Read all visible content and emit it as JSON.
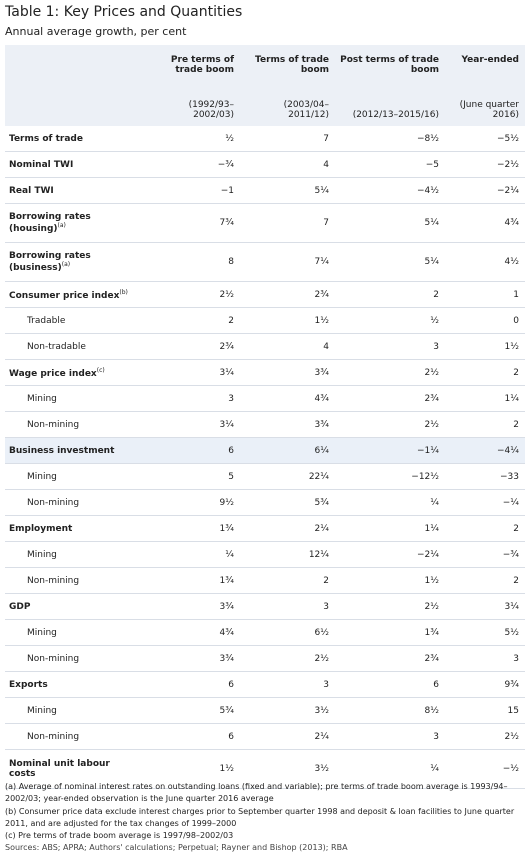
{
  "title": "Table 1: Key Prices and Quantities",
  "subtitle": "Annual average growth, per cent",
  "columns": [
    {
      "title": "Pre terms of trade boom",
      "period": "(1992/93–2002/03)"
    },
    {
      "title": "Terms of trade boom",
      "period": "(2003/04–2011/12)"
    },
    {
      "title": "Post terms of trade boom",
      "period": "(2012/13–2015/16)"
    },
    {
      "title": "Year-ended",
      "period": "(June quarter 2016)"
    }
  ],
  "rows": [
    {
      "label": "Terms of trade",
      "values": [
        "½",
        "7",
        "−8½",
        "−5½"
      ]
    },
    {
      "label": "Nominal TWI",
      "values": [
        "−¾",
        "4",
        "−5",
        "−2½"
      ]
    },
    {
      "label": "Real TWI",
      "values": [
        "−1",
        "5¼",
        "−4½",
        "−2¼"
      ]
    },
    {
      "label": "Borrowing rates (housing)",
      "note": "(a)",
      "values": [
        "7¾",
        "7",
        "5¼",
        "4¾"
      ]
    },
    {
      "label": "Borrowing rates (business)",
      "note": "(a)",
      "values": [
        "8",
        "7¼",
        "5¼",
        "4½"
      ]
    },
    {
      "label": "Consumer price index",
      "note": "(b)",
      "values": [
        "2½",
        "2¾",
        "2",
        "1"
      ],
      "sub_rows": [
        {
          "label": "Tradable",
          "values": [
            "2",
            "1½",
            "½",
            "0"
          ]
        },
        {
          "label": "Non-tradable",
          "values": [
            "2¾",
            "4",
            "3",
            "1½"
          ]
        }
      ]
    },
    {
      "label": "Wage price index",
      "note": "(c)",
      "values": [
        "3¼",
        "3¾",
        "2½",
        "2"
      ],
      "sub_rows": [
        {
          "label": "Mining",
          "values": [
            "3",
            "4¾",
            "2¾",
            "1¼"
          ]
        },
        {
          "label": "Non-mining",
          "values": [
            "3¼",
            "3¾",
            "2½",
            "2"
          ]
        }
      ]
    },
    {
      "label": "Business investment",
      "highlight": true,
      "values": [
        "6",
        "6¼",
        "−1¼",
        "−4¼"
      ],
      "sub_rows": [
        {
          "label": "Mining",
          "values": [
            "5",
            "22¼",
            "−12½",
            "−33"
          ]
        },
        {
          "label": "Non-mining",
          "values": [
            "9½",
            "5¾",
            "¼",
            "−¼"
          ]
        }
      ]
    },
    {
      "label": "Employment",
      "values": [
        "1¾",
        "2¼",
        "1¼",
        "2"
      ],
      "sub_rows": [
        {
          "label": "Mining",
          "values": [
            "¼",
            "12¼",
            "−2¼",
            "−¾"
          ]
        },
        {
          "label": "Non-mining",
          "values": [
            "1¾",
            "2",
            "1½",
            "2"
          ]
        }
      ]
    },
    {
      "label": "GDP",
      "values": [
        "3¾",
        "3",
        "2½",
        "3¼"
      ],
      "sub_rows": [
        {
          "label": "Mining",
          "values": [
            "4¾",
            "6½",
            "1¾",
            "5½"
          ]
        },
        {
          "label": "Non-mining",
          "values": [
            "3¾",
            "2½",
            "2¾",
            "3"
          ]
        }
      ]
    },
    {
      "label": "Exports",
      "values": [
        "6",
        "3",
        "6",
        "9¾"
      ],
      "sub_rows": [
        {
          "label": "Mining",
          "values": [
            "5¾",
            "3½",
            "8½",
            "15"
          ]
        },
        {
          "label": "Non-mining",
          "values": [
            "6",
            "2¼",
            "3",
            "2½"
          ]
        }
      ]
    },
    {
      "label": "Nominal unit labour costs",
      "values": [
        "1½",
        "3½",
        "¼",
        "−½"
      ]
    }
  ],
  "footnotes": [
    "(a) Average of nominal interest rates on outstanding loans (fixed and variable); pre terms of trade boom average is 1993/94–2002/03; year-ended observation is the June quarter 2016 average",
    "(b) Consumer price data exclude interest charges prior to September quarter 1998 and deposit & loan facilities to June quarter 2011, and are adjusted for the tax changes of 1999–2000",
    "(c) Pre terms of trade boom average is 1997/98–2002/03"
  ],
  "sources": "Sources: ABS; APRA; Authors' calculations; Perpetual; Rayner and Bishop (2013); RBA"
}
